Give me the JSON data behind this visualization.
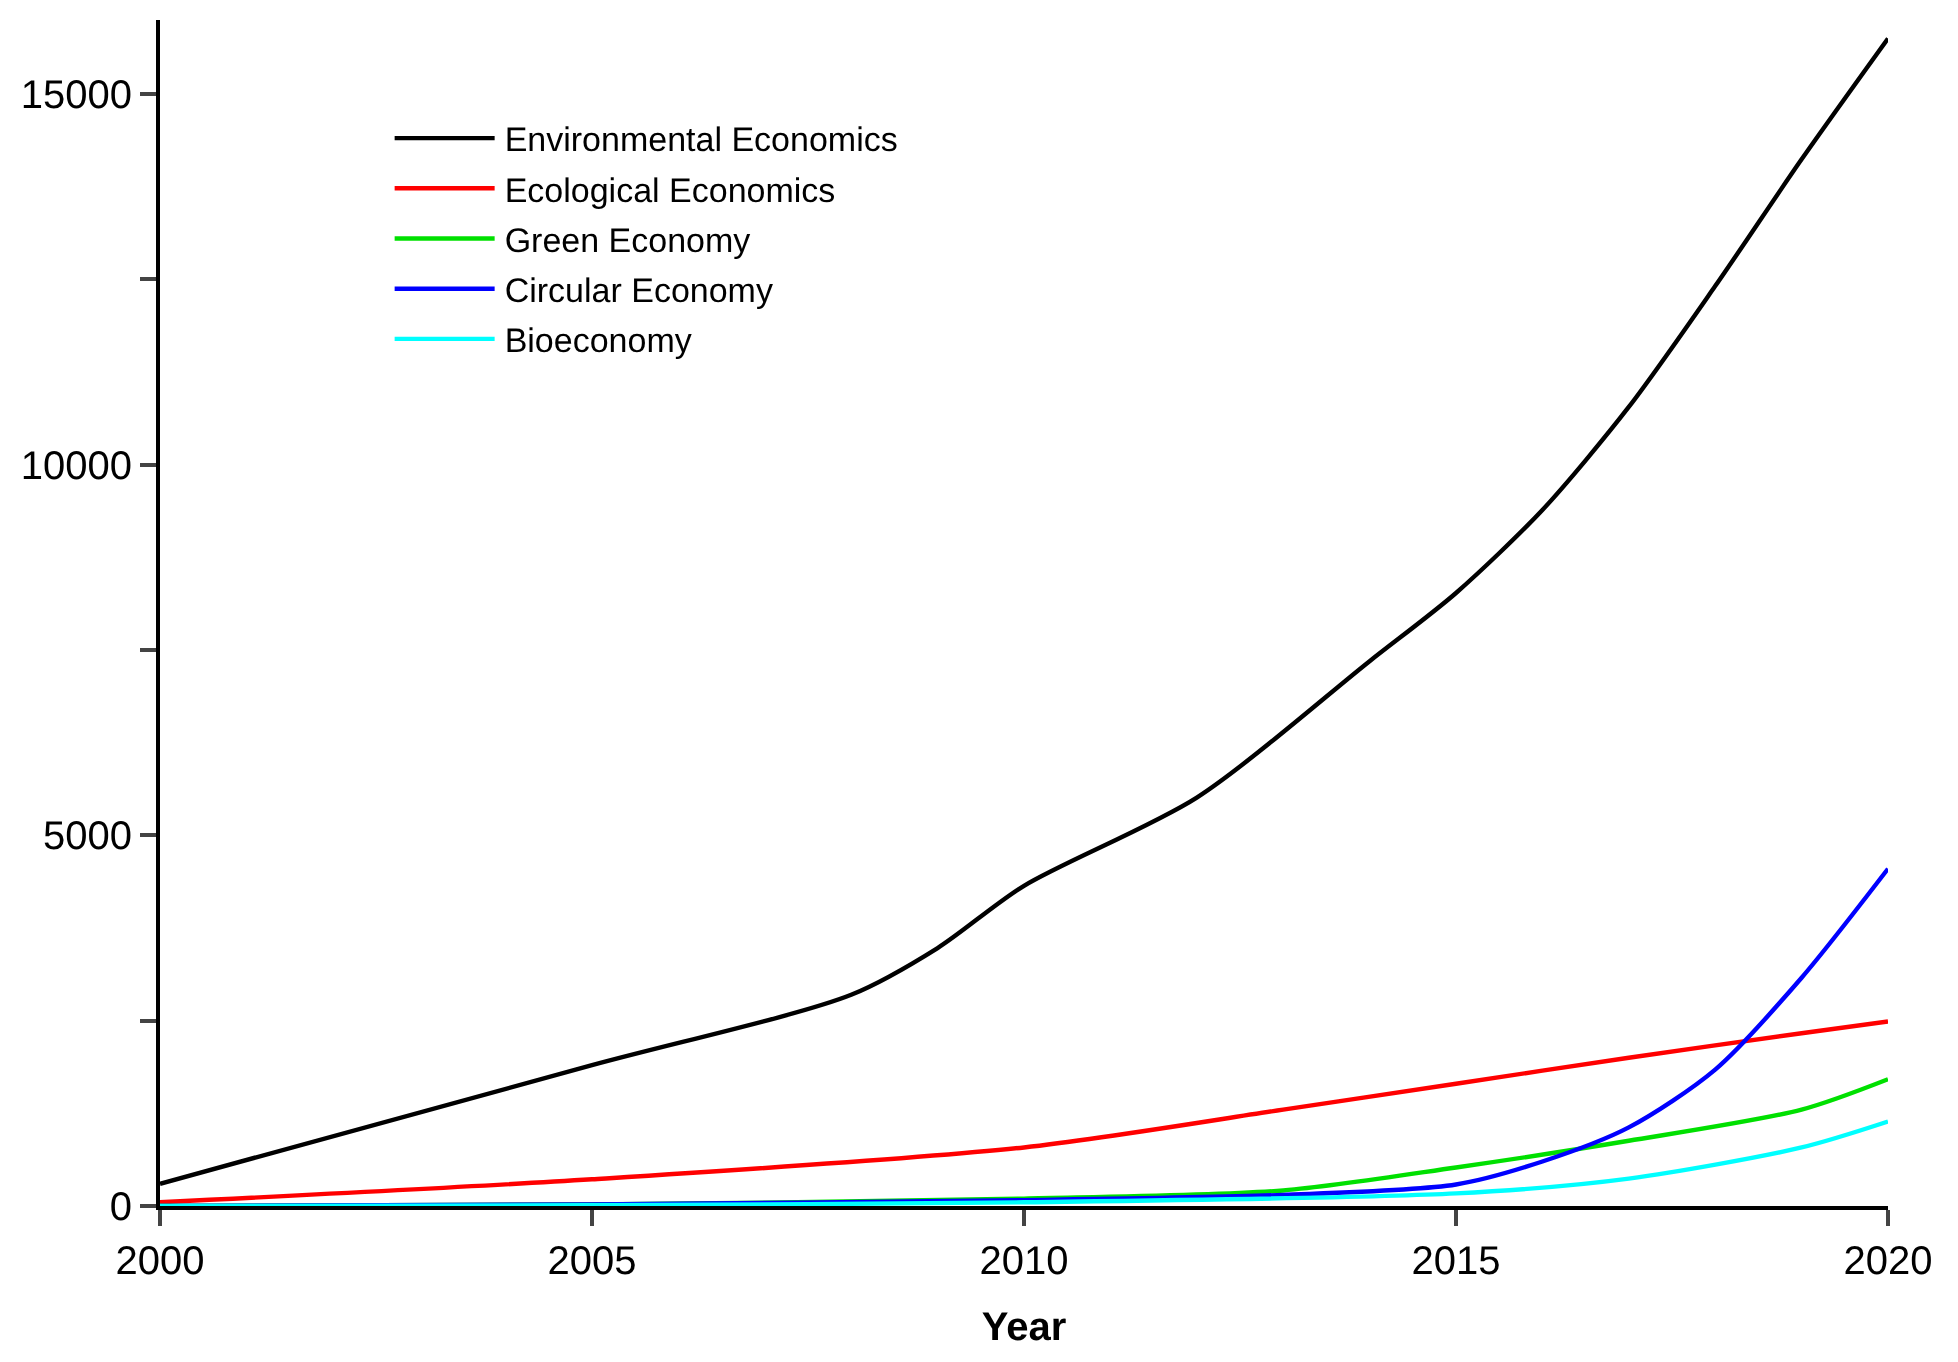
{
  "chart_data": {
    "type": "line",
    "xlabel": "Year",
    "xlim": [
      2000,
      2020
    ],
    "xticks": [
      2000,
      2005,
      2010,
      2015,
      2020
    ],
    "ylim": [
      0,
      16000
    ],
    "yticks": [
      0,
      {
        "value": 2500,
        "label": null
      },
      5000,
      {
        "value": 7500,
        "label": null
      },
      10000,
      {
        "value": 12500,
        "label": null
      },
      15000
    ],
    "legend": "top left",
    "marker": "none",
    "line_style": "solid",
    "series": [
      {
        "name": "Environmental Economics",
        "color": "#000000",
        "x": [
          2000,
          2005,
          2008,
          2009,
          2010,
          2012,
          2014,
          2015,
          2016,
          2017,
          2018,
          2019,
          2020
        ],
        "values": [
          300,
          1900,
          2850,
          3480,
          4320,
          5510,
          7350,
          8270,
          9390,
          10780,
          12410,
          14120,
          15750
        ]
      },
      {
        "name": "Ecological Economics",
        "color": "#ff0000",
        "x": [
          2000,
          2005,
          2010,
          2013,
          2015,
          2017,
          2019,
          2020
        ],
        "values": [
          50,
          360,
          790,
          1300,
          1650,
          2000,
          2330,
          2490
        ]
      },
      {
        "name": "Green Economy",
        "color": "#00e000",
        "x": [
          2000,
          2005,
          2010,
          2013,
          2015,
          2017,
          2019,
          2020
        ],
        "values": [
          0,
          20,
          100,
          210,
          520,
          880,
          1300,
          1710
        ]
      },
      {
        "name": "Circular Economy",
        "color": "#0000ff",
        "x": [
          2000,
          2005,
          2010,
          2013,
          2015,
          2016,
          2017,
          2018,
          2019,
          2020
        ],
        "values": [
          0,
          20,
          80,
          150,
          290,
          600,
          1060,
          1840,
          3080,
          4550
        ]
      },
      {
        "name": "Bioeconomy",
        "color": "#00ffff",
        "x": [
          2000,
          2005,
          2010,
          2015,
          2017,
          2019,
          2020
        ],
        "values": [
          0,
          10,
          50,
          170,
          370,
          790,
          1140
        ]
      }
    ]
  }
}
